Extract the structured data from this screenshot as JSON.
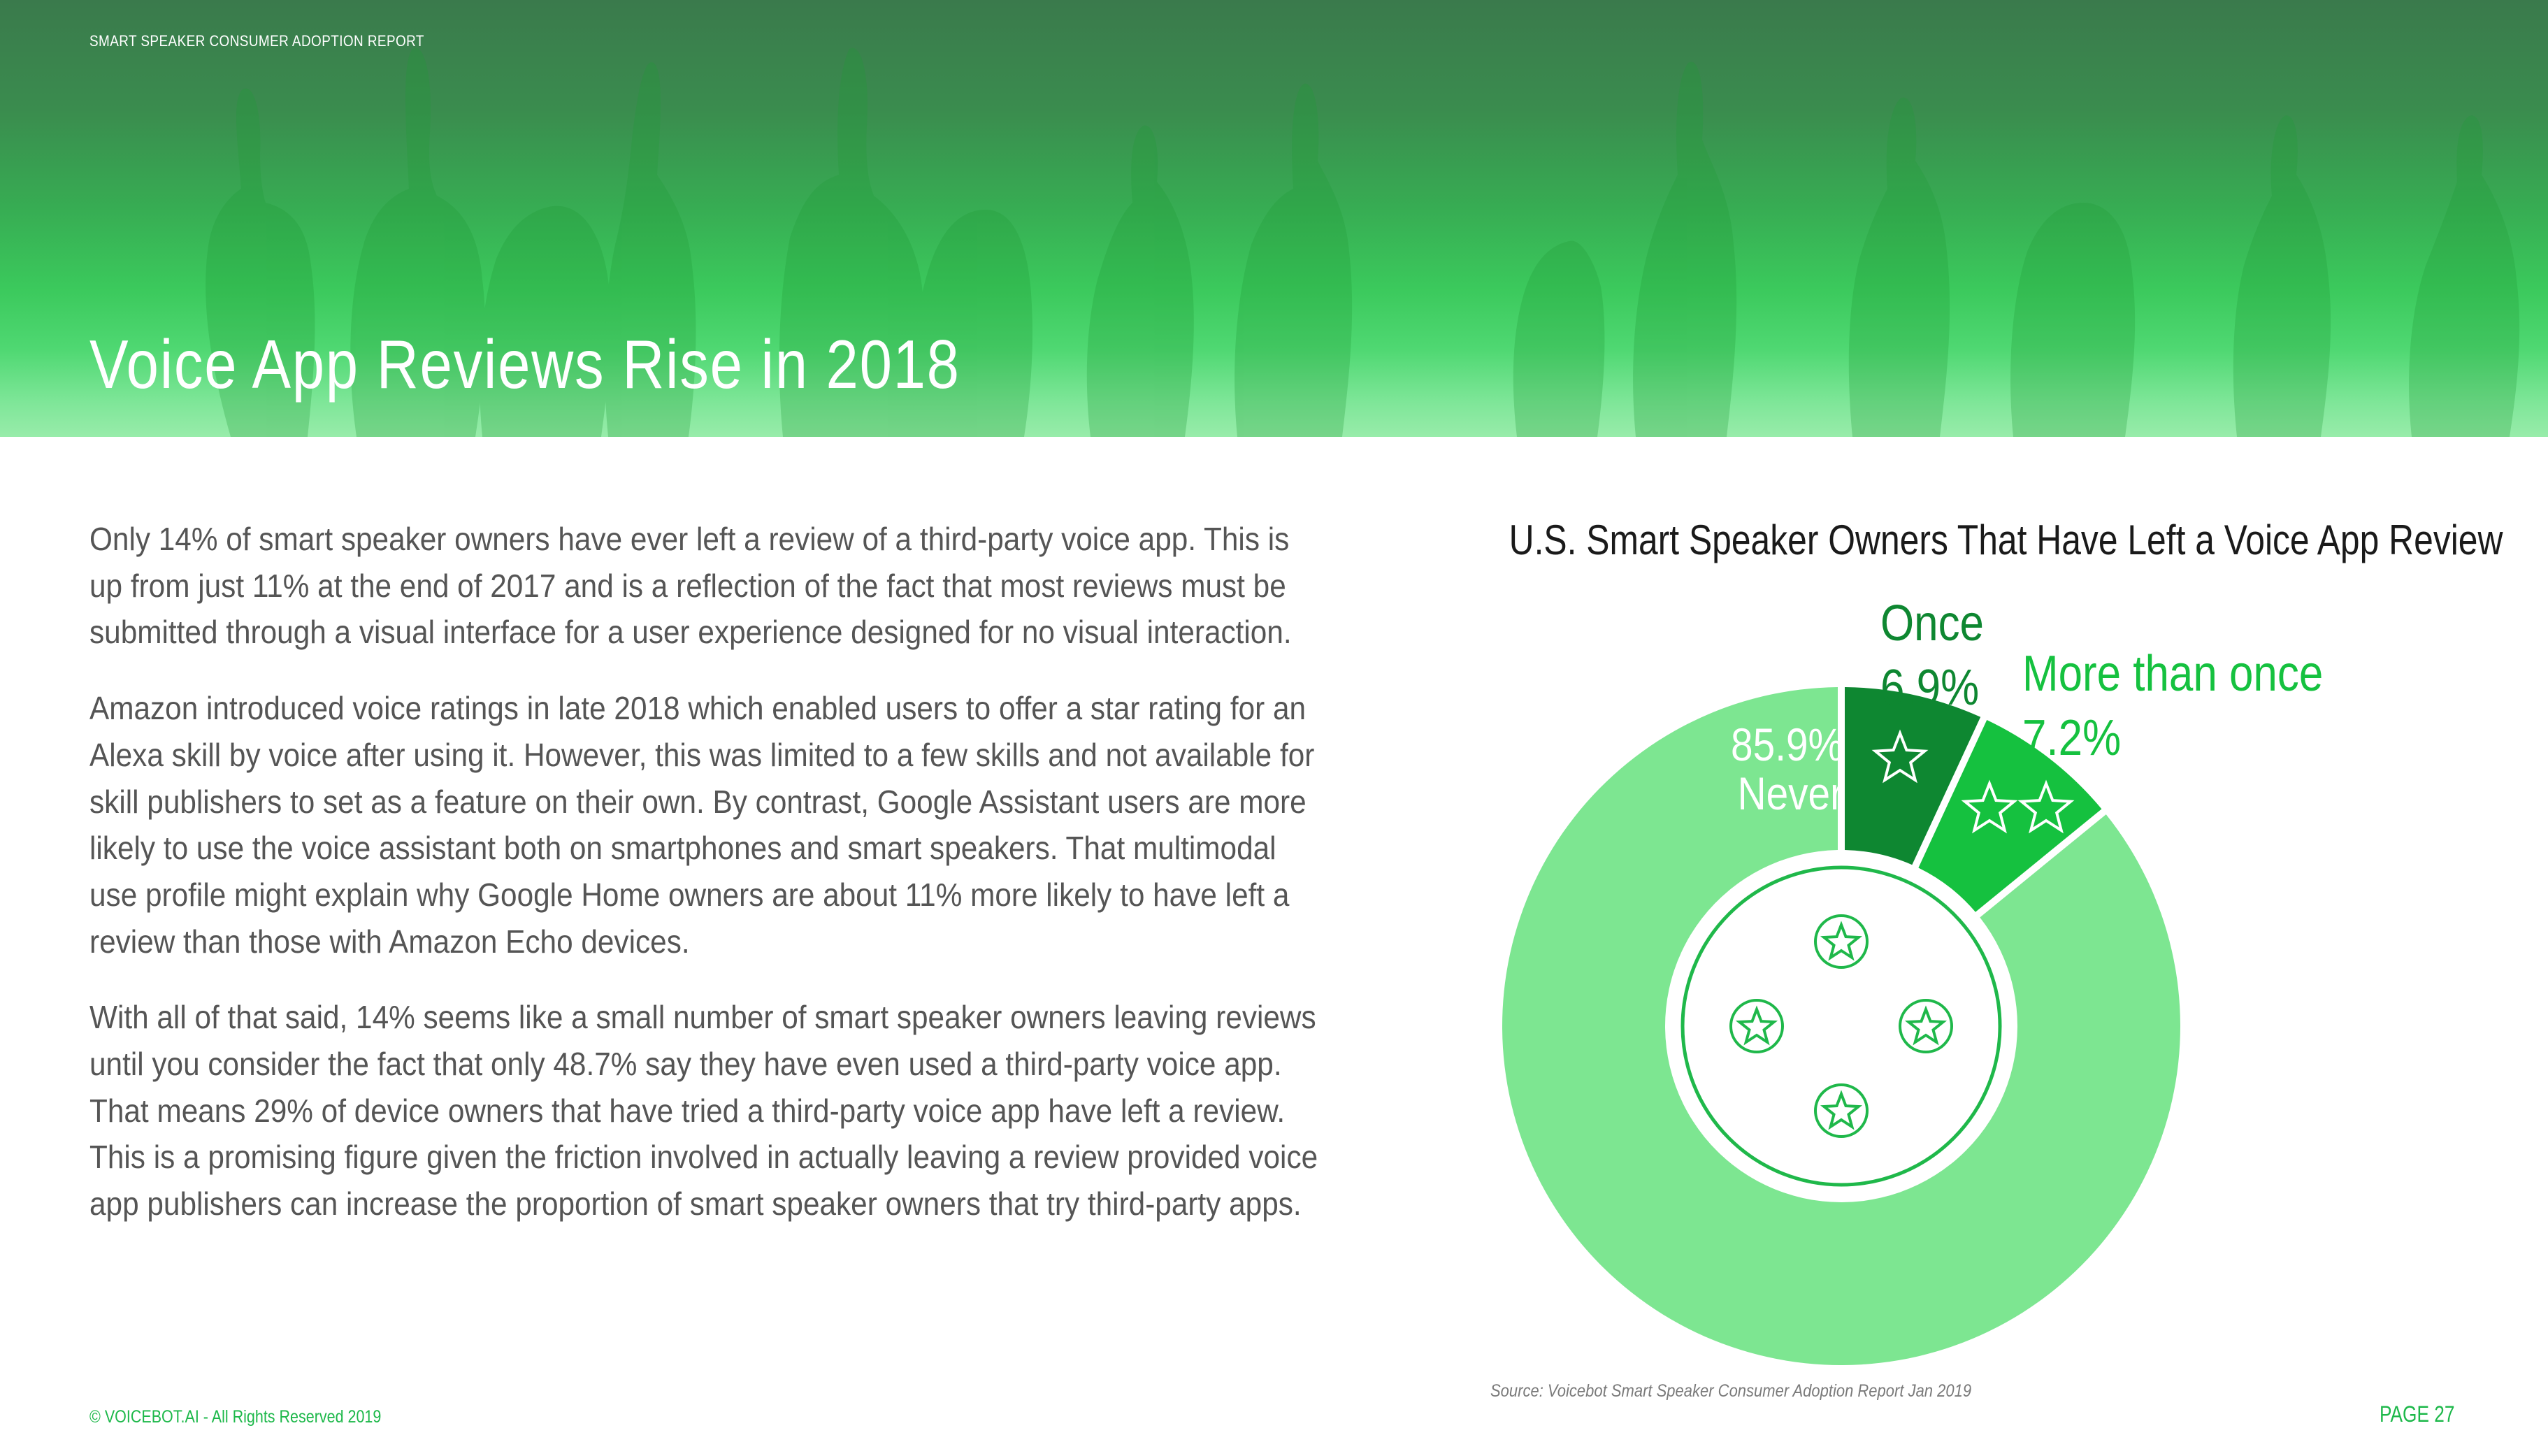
{
  "header": {
    "report_label": "SMART SPEAKER CONSUMER ADOPTION REPORT",
    "title": "Voice App Reviews Rise in 2018",
    "background_image": "thumbs-up-hands"
  },
  "body": {
    "paragraphs": [
      "Only 14% of smart speaker owners have ever left a review of a third-party voice app. This is up from just 11% at the end of 2017 and is a reflection of the fact that most reviews must be submitted through a visual interface for a user experience designed for no visual interaction.",
      "Amazon introduced voice ratings in late 2018 which enabled users to offer a star rating for an Alexa skill by voice after using it. However, this was limited to a few skills and not available for skill publishers to set as a feature on their own. By contrast, Google Assistant users are more likely to use the voice assistant both on smartphones and smart speakers. That multimodal use profile might explain why Google Home owners are about 11% more likely to have left a review than those with Amazon Echo devices.",
      "With all of that said, 14% seems like a small number of smart speaker owners leaving reviews until you consider the fact that only 48.7% say they have even used a third-party voice app. That means 29% of device owners that have tried a third-party voice app have left a review. This is a promising figure given the friction involved in actually leaving a review provided voice app publishers can increase the proportion of smart speaker owners that try third-party apps."
    ]
  },
  "chart": {
    "title": "U.S. Smart Speaker Owners That Have Left a Voice App Review",
    "labels": {
      "once_name": "Once",
      "once_value": "6.9%",
      "more_name": "More than once",
      "more_value": "7.2%",
      "never_value": "85.9%",
      "never_name": "Never"
    },
    "center_icons": [
      "star-badge-icon",
      "star-badge-icon",
      "star-badge-icon",
      "star-badge-icon"
    ],
    "source": "Source: Voicebot Smart Speaker Consumer Adoption Report Jan 2019"
  },
  "chart_data": {
    "type": "pie",
    "variant": "donut",
    "title": "U.S. Smart Speaker Owners That Have Left a Voice App Review",
    "categories": [
      "Once",
      "More than once",
      "Never"
    ],
    "values": [
      6.9,
      7.2,
      85.9
    ],
    "unit": "%",
    "colors": [
      "#0e8731",
      "#15c13f",
      "#7de691"
    ],
    "slice_icons": [
      "1 star",
      "2 stars",
      "none"
    ],
    "start_angle": "12 o'clock, clockwise",
    "legend": "none (direct labels)",
    "source": "Source: Voicebot Smart Speaker Consumer Adoption Report Jan 2019"
  },
  "footer": {
    "copyright": "© VOICEBOT.AI - All Rights Reserved 2019",
    "page": "PAGE 27"
  },
  "colors": {
    "brand_green": "#1db84a",
    "banner_top": "#3a7a4c",
    "banner_bottom": "#98ecaa",
    "body_text": "#555555"
  }
}
